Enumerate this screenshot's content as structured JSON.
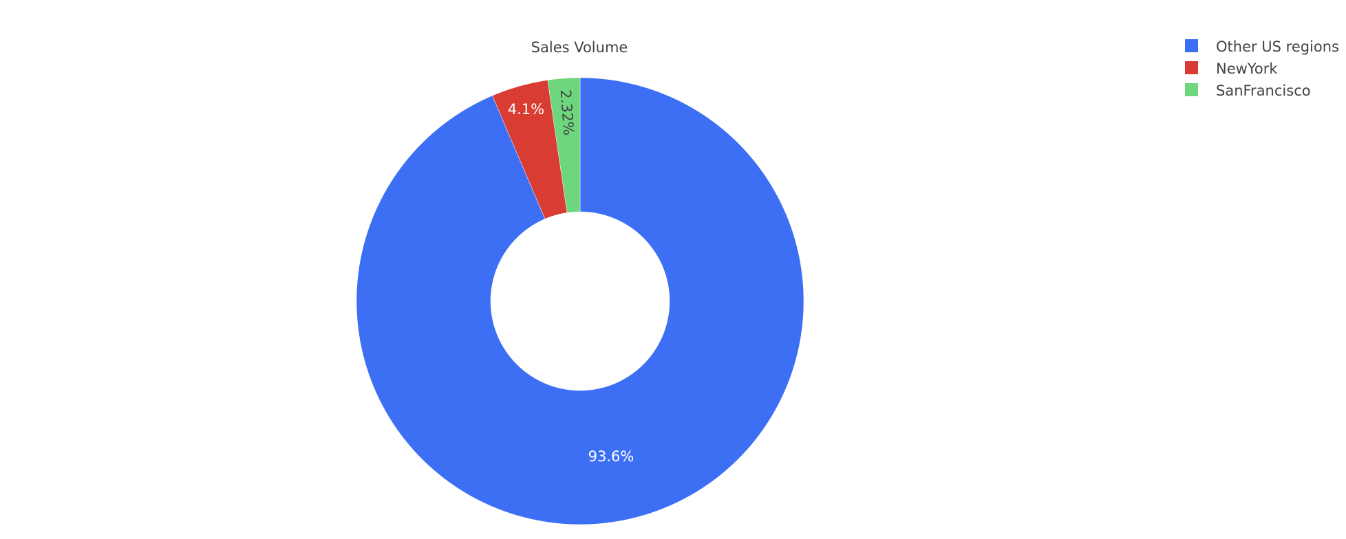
{
  "chart_data": {
    "type": "pie",
    "hole": true,
    "title": "Sales Volume",
    "slices": [
      {
        "label": "Other US regions",
        "value": 93.6,
        "text": "93.6%",
        "color": "#3d6ff5",
        "text_color": "#ffffff"
      },
      {
        "label": "NewYork",
        "value": 4.1,
        "text": "4.1%",
        "color": "#d83c33",
        "text_color": "#ffffff"
      },
      {
        "label": "SanFrancisco",
        "value": 2.32,
        "text": "2.32%",
        "color": "#6ed67c",
        "text_color": "#444444"
      }
    ],
    "legend": {
      "position": "top-right",
      "entries": [
        "Other US regions",
        "NewYork",
        "SanFrancisco"
      ]
    }
  }
}
